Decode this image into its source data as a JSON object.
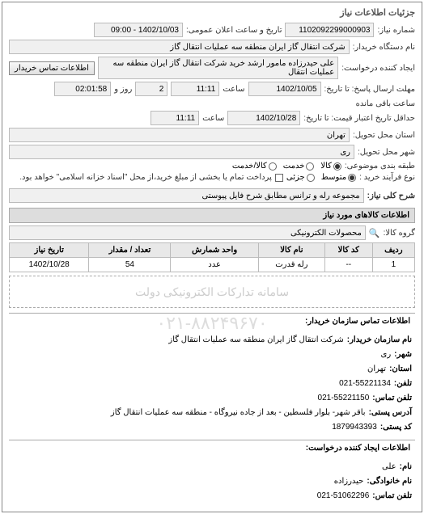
{
  "panel": {
    "title": "جزئیات اطلاعات نیاز"
  },
  "need": {
    "number_label": "شماره نیاز:",
    "number": "1102092299000903",
    "announce_label": "تاریخ و ساعت اعلان عمومی:",
    "announce": "1402/10/03 - 09:00",
    "buyer_org_label": "نام دستگاه خریدار:",
    "buyer_org": "شرکت انتقال گاز ایران منطقه سه عملیات انتقال گاز",
    "requester_label": "ایجاد کننده درخواست:",
    "requester": "علی حیدرزاده مامور ارشد خرید شرکت انتقال گاز ایران منطقه سه عملیات انتقال",
    "contact_btn": "اطلاعات تماس خریدار",
    "deadline_label": "مهلت ارسال پاسخ: تا تاریخ:",
    "deadline_date": "1402/10/05",
    "deadline_time_label": "ساعت",
    "deadline_time": "11:11",
    "days_label": "روز و",
    "days": "2",
    "remain_label": "ساعت باقی مانده",
    "remain": "02:01:58",
    "validity_label": "حداقل تاریخ اعتبار قیمت: تا تاریخ:",
    "validity_date": "1402/10/28",
    "validity_time": "11:11",
    "province_label": "استان محل تحویل:",
    "province": "تهران",
    "city_label": "شهر محل تحویل:",
    "city": "ری",
    "subject_cat_label": "طبقه بندی موضوعی:",
    "radios": {
      "kala": "کالا",
      "khedmat": "خدمت",
      "kala_khedmat": "کالا/خدمت"
    },
    "buy_type_label": "نوع فرآیند خرید :",
    "radios2": {
      "medium": "متوسط",
      "partial": "جزئی"
    },
    "buy_note": "پرداخت تمام یا بخشی از مبلغ خرید،از محل \"اسناد خزانه اسلامی\" خواهد بود.",
    "desc_label": "شرح کلی نیاز:",
    "desc": "مجموعه رله و ترانس مطابق شرح فایل پیوستی"
  },
  "items": {
    "section_title": "اطلاعات کالاهای مورد نیاز",
    "group_label": "گروه کالا:",
    "group": "محصولات الکترونیکی",
    "search_icon": "🔍",
    "columns": [
      "ردیف",
      "کد کالا",
      "نام کالا",
      "واحد شمارش",
      "تعداد / مقدار",
      "تاریخ نیاز"
    ],
    "rows": [
      [
        "1",
        "--",
        "رله قدرت",
        "عدد",
        "54",
        "1402/10/28"
      ]
    ],
    "watermark": "سامانه تدارکات الکترونیکی دولت"
  },
  "contact": {
    "section_title": "اطلاعات تماس سازمان خریدار:",
    "lines": [
      [
        "نام سازمان خریدار:",
        "شرکت انتقال گاز ایران منطقه سه عملیات انتقال گاز"
      ],
      [
        "شهر:",
        "ری"
      ],
      [
        "استان:",
        "تهران"
      ],
      [
        "تلفن:",
        "021-55221134"
      ],
      [
        "تلفن تماس:",
        "021-55221150"
      ],
      [
        "آدرس پستی:",
        "باقر شهر- بلوار فلسطین - بعد از جاده نیروگاه - منطقه سه عملیات انتقال گاز"
      ],
      [
        "کد پستی:",
        "1879943393"
      ]
    ]
  },
  "requester_info": {
    "section_title": "اطلاعات ایجاد کننده درخواست:",
    "lines": [
      [
        "نام:",
        "علی"
      ],
      [
        "نام خانوادگی:",
        "حیدرزاده"
      ],
      [
        "تلفن تماس:",
        "021-51062296"
      ]
    ]
  },
  "wm_big": "۰۲۱-۸۸۲۴۹۶۷۰"
}
